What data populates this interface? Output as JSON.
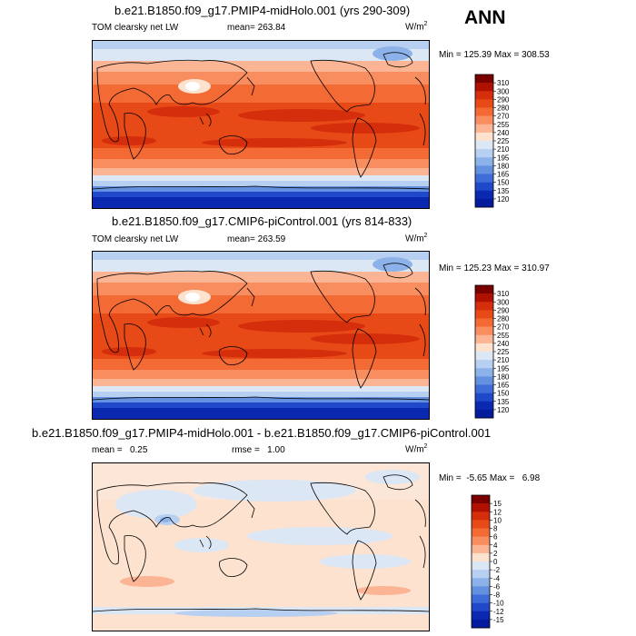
{
  "season": "ANN",
  "chart_data": [
    {
      "type": "heatmap",
      "panel": "top",
      "title": "b.e21.B1850.f09_g17.PMIP4-midHolo.001 (yrs 290-309)",
      "variable": "TOM clearsky net LW",
      "mean_label": "mean= 263.84",
      "units": "W/m",
      "units_exp": "2",
      "min_max": "Min = 125.39 Max = 308.53",
      "levels": [
        "310",
        "300",
        "290",
        "280",
        "270",
        "255",
        "240",
        "225",
        "210",
        "195",
        "180",
        "165",
        "150",
        "135",
        "120"
      ],
      "colors": [
        "#7a0000",
        "#b01000",
        "#d42e0c",
        "#e84a17",
        "#f46a34",
        "#f88d5f",
        "#fbb494",
        "#fde2cf",
        "#dce7f5",
        "#b7cff0",
        "#8db2ea",
        "#6490e0",
        "#3e6cd8",
        "#1f49c8",
        "#0a28b0",
        "#041c9c"
      ]
    },
    {
      "type": "heatmap",
      "panel": "middle",
      "title": "b.e21.B1850.f09_g17.CMIP6-piControl.001 (yrs 814-833)",
      "variable": "TOM clearsky net LW",
      "mean_label": "mean= 263.59",
      "units": "W/m",
      "units_exp": "2",
      "min_max": "Min = 125.23 Max = 310.97",
      "levels": [
        "310",
        "300",
        "290",
        "280",
        "270",
        "255",
        "240",
        "225",
        "210",
        "195",
        "180",
        "165",
        "150",
        "135",
        "120"
      ],
      "colors": [
        "#7a0000",
        "#b01000",
        "#d42e0c",
        "#e84a17",
        "#f46a34",
        "#f88d5f",
        "#fbb494",
        "#fde2cf",
        "#dce7f5",
        "#b7cff0",
        "#8db2ea",
        "#6490e0",
        "#3e6cd8",
        "#1f49c8",
        "#0a28b0",
        "#041c9c"
      ]
    },
    {
      "type": "heatmap",
      "panel": "bottom",
      "title": "b.e21.B1850.f09_g17.PMIP4-midHolo.001 - b.e21.B1850.f09_g17.CMIP6-piControl.001",
      "mean_label": "mean =   0.25",
      "rmse_label": "rmse =   1.00",
      "units": "W/m",
      "units_exp": "2",
      "min_max": "Min =  -5.65 Max =   6.98",
      "levels": [
        "15",
        "12",
        "10",
        "8",
        "6",
        "4",
        "2",
        "0",
        "-2",
        "-4",
        "-6",
        "-8",
        "-10",
        "-12",
        "-15"
      ],
      "colors": [
        "#7a0000",
        "#b01000",
        "#d42e0c",
        "#e84a17",
        "#f46a34",
        "#f88d5f",
        "#fbb494",
        "#fde2cf",
        "#dce7f5",
        "#b7cff0",
        "#8db2ea",
        "#6490e0",
        "#3e6cd8",
        "#1f49c8",
        "#0a28b0",
        "#041c9c"
      ]
    }
  ]
}
